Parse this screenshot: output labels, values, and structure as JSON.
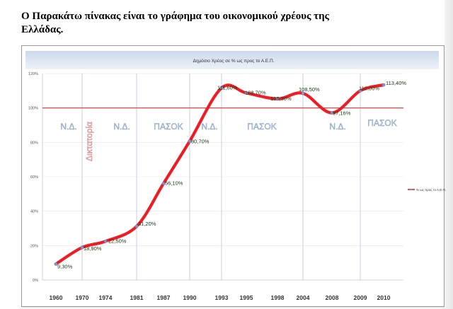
{
  "caption": "Ο Παρακάτω πίνακας είναι το γράφημα του οικονομικού χρέους της Ελλάδας.",
  "chart_data": {
    "type": "line",
    "title": "Δημόσιο Χρέος σε % ως προς το Α.Ε.Π.",
    "categories": [
      "1960",
      "1970",
      "1974",
      "1981",
      "1987",
      "1990",
      "1993",
      "1995",
      "1998",
      "2004",
      "2008",
      "2009",
      "2010"
    ],
    "series": [
      {
        "name": "% ως προς το Α.Ε.Π.",
        "values": [
          9.3,
          18.9,
          22.5,
          31.2,
          56.1,
          80.7,
          111.6,
          108.7,
          105.3,
          108.5,
          97.16,
          110.0,
          113.4
        ],
        "labels": [
          "9,30%",
          "18,90%",
          "22,50%",
          "31,20%",
          "56,10%",
          "80,70%",
          "111,60%",
          "108,70%",
          "105,30%",
          "108,50%",
          "97,16%",
          "110,00%",
          "113,40%"
        ],
        "color": "#ee1c24"
      }
    ],
    "y_ticks": [
      "0%",
      "20%",
      "40%",
      "60%",
      "80%",
      "100%",
      "120%"
    ],
    "ylim": [
      0,
      120
    ],
    "reference_line": {
      "value": 100,
      "color": "#d93030"
    },
    "period_labels": [
      {
        "text": "Ν.Δ.",
        "kind": "party"
      },
      {
        "text": "Δικτατορία",
        "kind": "dictatorship"
      },
      {
        "text": "Ν.Δ.",
        "kind": "party"
      },
      {
        "text": "ΠΑΣΟΚ",
        "kind": "party"
      },
      {
        "text": "Ν.Δ.",
        "kind": "party"
      },
      {
        "text": "ΠΑΣΟΚ",
        "kind": "party"
      },
      {
        "text": "Ν.Δ.",
        "kind": "party"
      },
      {
        "text": "ΠΑΣΟΚ",
        "kind": "party"
      }
    ],
    "legend": {
      "position": "right",
      "label": "% ως προς το Α.Ε.Π."
    },
    "grid": true
  }
}
